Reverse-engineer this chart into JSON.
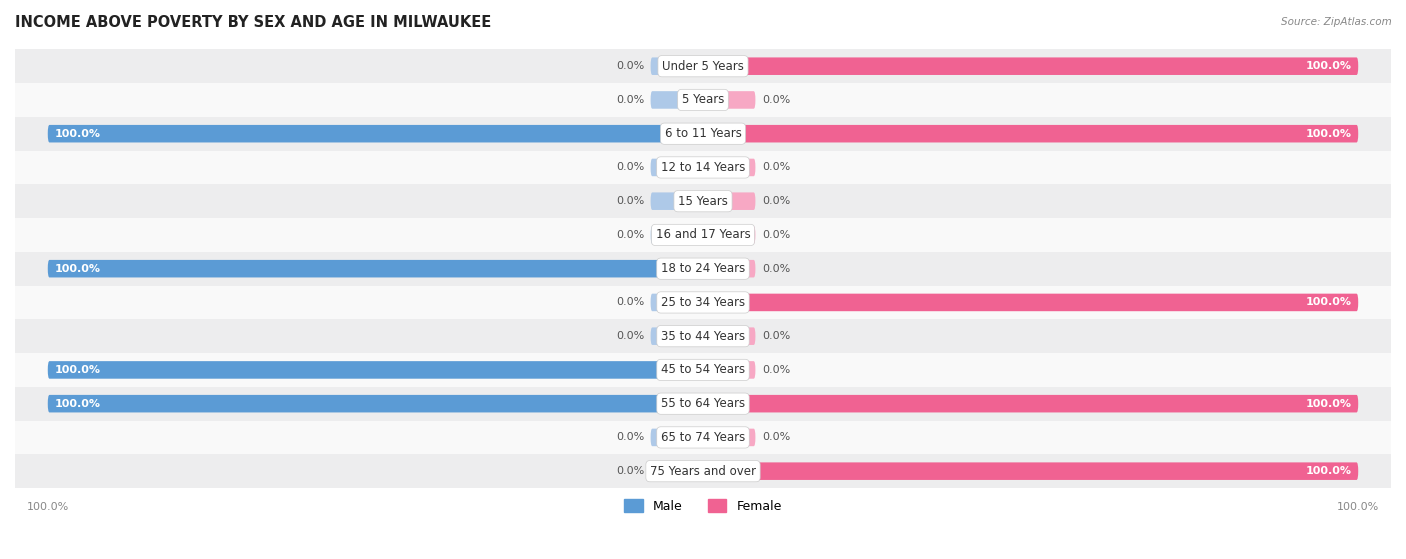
{
  "title": "INCOME ABOVE POVERTY BY SEX AND AGE IN MILWAUKEE",
  "source": "Source: ZipAtlas.com",
  "categories": [
    "Under 5 Years",
    "5 Years",
    "6 to 11 Years",
    "12 to 14 Years",
    "15 Years",
    "16 and 17 Years",
    "18 to 24 Years",
    "25 to 34 Years",
    "35 to 44 Years",
    "45 to 54 Years",
    "55 to 64 Years",
    "65 to 74 Years",
    "75 Years and over"
  ],
  "male_values": [
    0.0,
    0.0,
    100.0,
    0.0,
    0.0,
    0.0,
    100.0,
    0.0,
    0.0,
    100.0,
    100.0,
    0.0,
    0.0
  ],
  "female_values": [
    100.0,
    0.0,
    100.0,
    0.0,
    0.0,
    0.0,
    0.0,
    100.0,
    0.0,
    0.0,
    100.0,
    0.0,
    100.0
  ],
  "male_color_full": "#5b9bd5",
  "male_color_light": "#aec9e8",
  "female_color_full": "#f06292",
  "female_color_light": "#f7a8c4",
  "row_bg_light": "#ededee",
  "row_bg_white": "#f9f9f9",
  "title_fontsize": 10.5,
  "label_fontsize": 8.5,
  "value_fontsize": 8,
  "tick_fontsize": 8,
  "max_val": 100,
  "stub_size": 8.0,
  "legend_labels": [
    "Male",
    "Female"
  ]
}
